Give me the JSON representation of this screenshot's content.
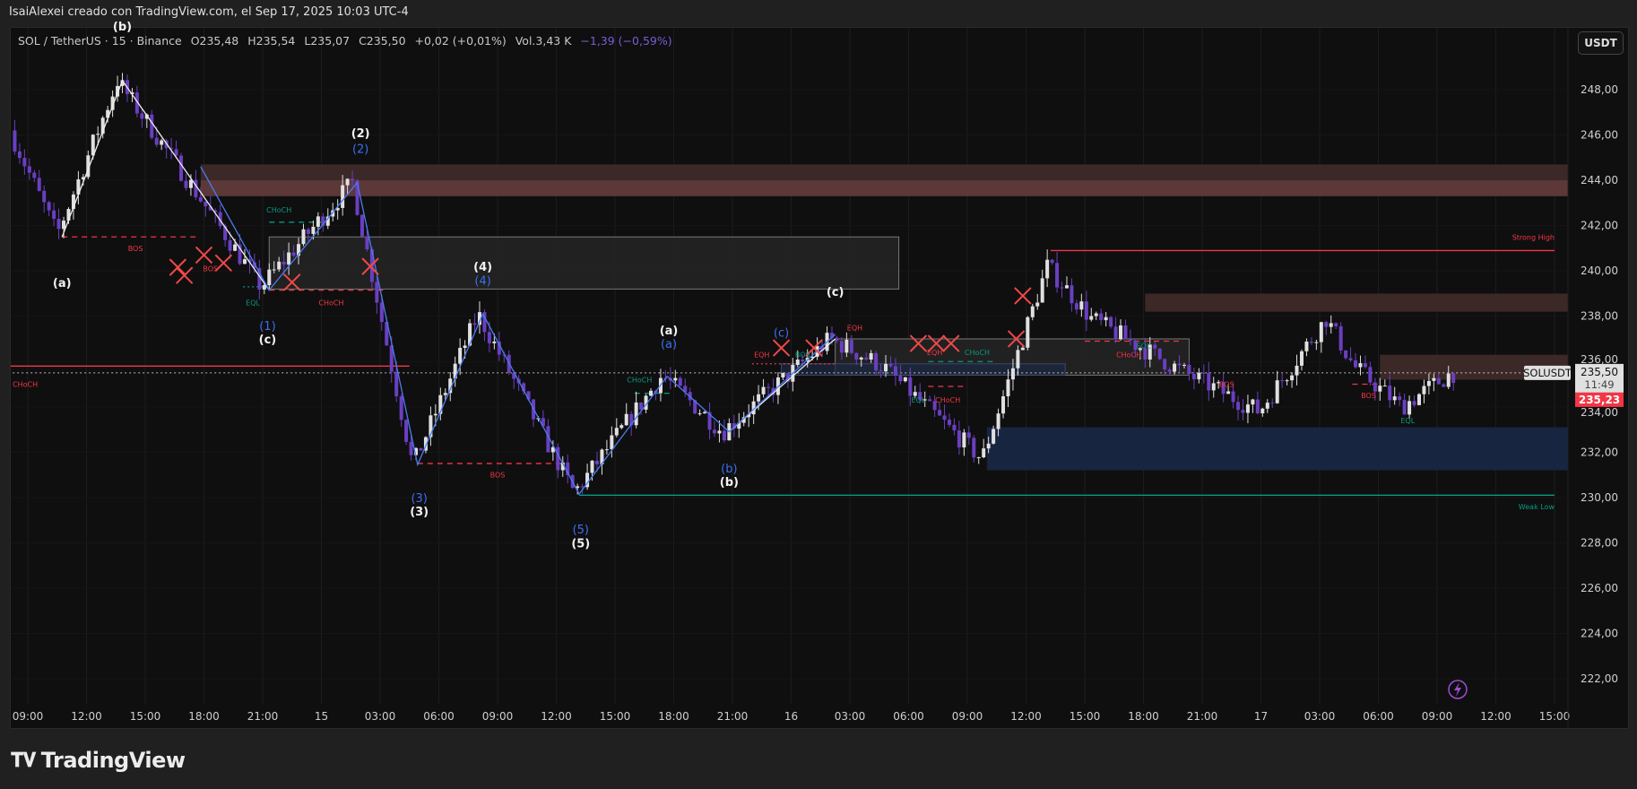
{
  "credit": "IsaiAlexei creado con TradingView.com, el Sep 17, 2025 10:03 UTC-4",
  "legend": {
    "symbol": "SOL / TetherUS · 15 · Binance",
    "open": "O235,48",
    "high": "H235,54",
    "low": "L235,07",
    "close": "C235,50",
    "change": "+0,02 (+0,01%)",
    "volume": "Vol.3,43 K",
    "indicator_change": "−1,39 (−0,59%)"
  },
  "currency_button": "USDT",
  "footer_logo": "TradingView",
  "footer_logo_mark": "TV",
  "colors": {
    "background": "#0f0f0f",
    "bull": "#e0e0e0",
    "bear": "#6a3fc1",
    "red": "#f23645",
    "teal": "#089981",
    "blue": "#2962ff",
    "zone_red": "#5a3434",
    "zone_blue": "#1a2a4a"
  },
  "chart_data": {
    "type": "candlestick",
    "symbol": "SOLUSDT",
    "interval": "15",
    "ylim": [
      221,
      250
    ],
    "y_ticks": [
      "248,00",
      "246,00",
      "244,00",
      "242,00",
      "240,00",
      "238,00",
      "236,00",
      "234,00",
      "232,00",
      "230,00",
      "228,00",
      "226,00",
      "224,00",
      "222,00"
    ],
    "x_ticks": [
      "09:00",
      "12:00",
      "15:00",
      "18:00",
      "21:00",
      "15",
      "03:00",
      "06:00",
      "09:00",
      "12:00",
      "15:00",
      "18:00",
      "21:00",
      "16",
      "03:00",
      "06:00",
      "09:00",
      "12:00",
      "15:00",
      "18:00",
      "21:00",
      "17",
      "03:00",
      "06:00",
      "09:00",
      "12:00",
      "15:00"
    ],
    "price_path": [
      [
        "14 08:20",
        246.2
      ],
      [
        "14 10:45",
        241.6
      ],
      [
        "14 13:50",
        248.4
      ],
      [
        "14 17:40",
        243.7
      ],
      [
        "14 21:10",
        239.3
      ],
      [
        "15 01:50",
        243.9
      ],
      [
        "15 04:55",
        231.4
      ],
      [
        "15 08:15",
        238.1
      ],
      [
        "15 13:10",
        230.2
      ],
      [
        "15 17:40",
        235.4
      ],
      [
        "15 20:45",
        232.9
      ],
      [
        "16 02:15",
        237.0
      ],
      [
        "16 04:55",
        235.8
      ],
      [
        "16 10:00",
        231.7
      ],
      [
        "16 13:20",
        240.2
      ],
      [
        "16 15:35",
        237.9
      ],
      [
        "16 20:10",
        235.6
      ],
      [
        "17 00:10",
        233.8
      ],
      [
        "17 03:35",
        237.9
      ],
      [
        "17 05:00",
        235.8
      ],
      [
        "17 07:25",
        234.0
      ],
      [
        "17 10:00",
        235.5
      ]
    ],
    "last_price": "235,50",
    "countdown": "11:49",
    "symbol_label": "SOLUSDT",
    "other_price": "235,23",
    "zones": [
      {
        "from": "14 17:50",
        "to": "17 16:15",
        "top": 244.7,
        "bottom": 243.3,
        "kind": "red"
      },
      {
        "from": "14 17:50",
        "to": "17 16:15",
        "top": 244.0,
        "bottom": 243.3,
        "kind": "red2"
      },
      {
        "from": "14 21:20",
        "to": "16 05:30",
        "top": 241.5,
        "bottom": 239.2,
        "kind": "grey"
      },
      {
        "from": "16 18:05",
        "to": "17 16:15",
        "top": 239.0,
        "bottom": 238.2,
        "kind": "red"
      },
      {
        "from": "16 02:15",
        "to": "16 20:20",
        "top": 237.0,
        "bottom": 235.4,
        "kind": "grey"
      },
      {
        "from": "15 23:30",
        "to": "16 14:00",
        "top": 235.9,
        "bottom": 235.4,
        "kind": "navy"
      },
      {
        "from": "17 06:05",
        "to": "17 16:15",
        "top": 236.3,
        "bottom": 235.2,
        "kind": "red"
      },
      {
        "from": "16 10:00",
        "to": "17 16:15",
        "top": 233.1,
        "bottom": 231.2,
        "kind": "blue"
      }
    ],
    "levels": [
      {
        "from": "16 13:15",
        "to": "17 15:00",
        "price": 240.9,
        "color": "red",
        "style": "solid"
      },
      {
        "from": "15 13:10",
        "to": "17 15:00",
        "price": 230.1,
        "color": "teal",
        "style": "solid"
      },
      {
        "from": "14 10:45",
        "to": "14 17:40",
        "price": 241.5,
        "color": "red",
        "style": "dashed"
      },
      {
        "from": "14 21:20",
        "to": "15 03:20",
        "price": 239.15,
        "color": "red",
        "style": "dashed"
      },
      {
        "from": "14 20:00",
        "to": "14 21:20",
        "price": 239.3,
        "color": "teal",
        "style": "dotted"
      },
      {
        "from": "14 21:20",
        "to": "15 00:00",
        "price": 242.15,
        "color": "teal",
        "style": "dashed"
      },
      {
        "from": "15 04:55",
        "to": "15 12:25",
        "price": 231.5,
        "color": "red",
        "style": "dashed"
      },
      {
        "from": "15 16:00",
        "to": "15 18:00",
        "price": 234.6,
        "color": "teal",
        "style": "dashed"
      },
      {
        "from": "15 22:00",
        "to": "16 02:15",
        "price": 235.9,
        "color": "red",
        "style": "dotted"
      },
      {
        "from": "16 07:00",
        "to": "16 10:30",
        "price": 236.0,
        "color": "teal",
        "style": "dashed"
      },
      {
        "from": "16 07:00",
        "to": "16 09:00",
        "price": 234.9,
        "color": "red",
        "style": "dashed"
      },
      {
        "from": "16 15:00",
        "to": "16 20:00",
        "price": 236.9,
        "color": "red",
        "style": "dashed"
      },
      {
        "from": "17 04:40",
        "to": "17 06:05",
        "price": 235.0,
        "color": "red",
        "style": "dashed"
      },
      {
        "from": "14 08:00",
        "to": "15 04:30",
        "price": 235.8,
        "color": "red",
        "style": "solid"
      },
      {
        "from": "14 08:00",
        "to": "17 16:15",
        "price": 235.5,
        "color": "white",
        "style": "dotted"
      }
    ],
    "zigzag_white": [
      [
        [
          "14 10:45",
          241.5
        ],
        [
          "14 13:50",
          248.4
        ],
        [
          "14 21:20",
          239.15
        ]
      ],
      [
        [
          "15 20:50",
          232.9
        ],
        [
          "16 02:15",
          237.0
        ]
      ]
    ],
    "zigzag_blue": [
      [
        "14 17:50",
        244.6
      ],
      [
        "14 21:20",
        239.15
      ],
      [
        "15 01:50",
        243.9
      ],
      [
        "15 04:55",
        231.45
      ],
      [
        "15 08:15",
        238.1
      ],
      [
        "15 13:10",
        230.15
      ],
      [
        "15 17:40",
        235.35
      ],
      [
        "15 20:50",
        232.9
      ],
      [
        "16 02:15",
        237.2
      ]
    ],
    "wave_labels": [
      {
        "text": "(b)",
        "t": "14 13:50",
        "p": 250.5,
        "color": "white"
      },
      {
        "text": "(a)",
        "t": "14 10:45",
        "p": 239.5,
        "color": "white"
      },
      {
        "text": "(2)",
        "t": "15 02:00",
        "p": 246.1,
        "color": "white"
      },
      {
        "text": "(2)",
        "t": "15 02:00",
        "p": 245.4,
        "color": "blue"
      },
      {
        "text": "(1)",
        "t": "14 21:15",
        "p": 237.6,
        "color": "blue"
      },
      {
        "text": "(c)",
        "t": "14 21:15",
        "p": 237.0,
        "color": "white"
      },
      {
        "text": "(4)",
        "t": "15 08:15",
        "p": 240.2,
        "color": "white"
      },
      {
        "text": "(4)",
        "t": "15 08:15",
        "p": 239.6,
        "color": "blue"
      },
      {
        "text": "(3)",
        "t": "15 05:00",
        "p": 230.0,
        "color": "blue"
      },
      {
        "text": "(3)",
        "t": "15 05:00",
        "p": 229.4,
        "color": "white"
      },
      {
        "text": "(5)",
        "t": "15 13:15",
        "p": 228.6,
        "color": "blue"
      },
      {
        "text": "(5)",
        "t": "15 13:15",
        "p": 228.0,
        "color": "white"
      },
      {
        "text": "(a)",
        "t": "15 17:45",
        "p": 237.4,
        "color": "white"
      },
      {
        "text": "(a)",
        "t": "15 17:45",
        "p": 236.8,
        "color": "blue"
      },
      {
        "text": "(b)",
        "t": "15 20:50",
        "p": 231.3,
        "color": "blue"
      },
      {
        "text": "(b)",
        "t": "15 20:50",
        "p": 230.7,
        "color": "white"
      },
      {
        "text": "(c)",
        "t": "15 23:30",
        "p": 237.3,
        "color": "blue"
      },
      {
        "text": "(c)",
        "t": "16 02:15",
        "p": 239.1,
        "color": "white"
      }
    ],
    "structure_labels": [
      {
        "text": "BOS",
        "t": "14 14:30",
        "p": 241.0,
        "color": "red"
      },
      {
        "text": "BOS",
        "t": "14 18:20",
        "p": 240.1,
        "color": "red"
      },
      {
        "text": "CHoCH",
        "t": "14 21:50",
        "p": 242.7,
        "color": "teal"
      },
      {
        "text": "EQL",
        "t": "14 20:30",
        "p": 238.6,
        "color": "teal"
      },
      {
        "text": "CHoCH",
        "t": "15 00:30",
        "p": 238.6,
        "color": "red"
      },
      {
        "text": "CHoCH",
        "t": "14 08:45",
        "p": 235.0,
        "color": "red"
      },
      {
        "text": "BOS",
        "t": "15 09:00",
        "p": 231.0,
        "color": "red"
      },
      {
        "text": "CHoCH",
        "t": "15 16:15",
        "p": 235.2,
        "color": "teal"
      },
      {
        "text": "EQH",
        "t": "15 22:30",
        "p": 236.3,
        "color": "red"
      },
      {
        "text": "BOS",
        "t": "16 00:35",
        "p": 236.3,
        "color": "teal"
      },
      {
        "text": "EQH",
        "t": "16 03:15",
        "p": 237.5,
        "color": "red"
      },
      {
        "text": "EQH",
        "t": "16 07:20",
        "p": 236.4,
        "color": "red"
      },
      {
        "text": "CHoCH",
        "t": "16 09:30",
        "p": 236.4,
        "color": "teal"
      },
      {
        "text": "EQL",
        "t": "16 06:30",
        "p": 234.3,
        "color": "teal"
      },
      {
        "text": "CHoCH",
        "t": "16 08:00",
        "p": 234.3,
        "color": "red"
      },
      {
        "text": "EQL",
        "t": "16 18:00",
        "p": 236.7,
        "color": "teal"
      },
      {
        "text": "CHoCH",
        "t": "16 17:15",
        "p": 236.3,
        "color": "red"
      },
      {
        "text": "BOS",
        "t": "16 22:15",
        "p": 235.0,
        "color": "red"
      },
      {
        "text": "BOS",
        "t": "17 05:30",
        "p": 234.5,
        "color": "red"
      },
      {
        "text": "EQL",
        "t": "17 07:30",
        "p": 233.4,
        "color": "teal"
      },
      {
        "text": "Strong High",
        "t": "17 15:00",
        "p": 241.5,
        "color": "red",
        "anchor": "end"
      },
      {
        "text": "Weak Low",
        "t": "17 15:00",
        "p": 229.6,
        "color": "teal",
        "anchor": "end"
      }
    ],
    "x_marks": [
      [
        "14 16:40",
        240.16
      ],
      [
        "14 17:00",
        239.8
      ],
      [
        "14 18:00",
        240.7
      ],
      [
        "14 19:00",
        240.35
      ],
      [
        "14 22:30",
        239.5
      ],
      [
        "15 02:30",
        240.2
      ],
      [
        "15 23:30",
        236.6
      ],
      [
        "16 01:10",
        236.6
      ],
      [
        "16 06:30",
        236.8
      ],
      [
        "16 07:25",
        236.8
      ],
      [
        "16 08:10",
        236.8
      ],
      [
        "16 11:30",
        237.0
      ],
      [
        "16 11:50",
        238.9
      ]
    ]
  }
}
